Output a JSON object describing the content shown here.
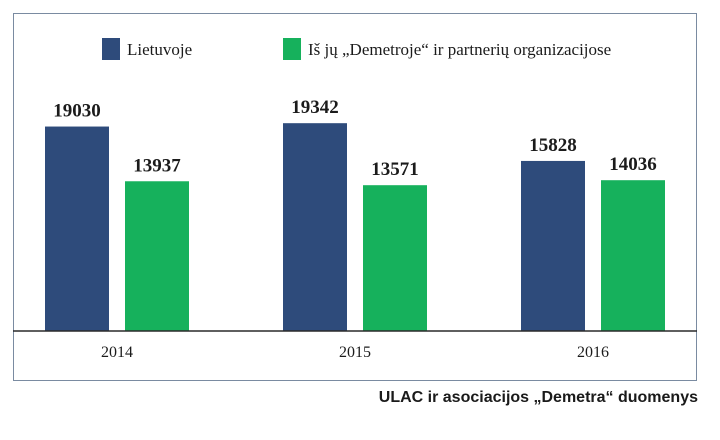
{
  "colors": {
    "series1": "#2e4b7b",
    "series2": "#16b15c",
    "axis": "#2a2a2a",
    "frame": "#7a8ba1"
  },
  "source_note": "ULAC ir asociacijos „Demetra“ duomenys",
  "chart_data": {
    "type": "bar",
    "categories": [
      "2014",
      "2015",
      "2016"
    ],
    "series": [
      {
        "name": "Lietuvoje",
        "values": [
          19030,
          19342,
          15828
        ]
      },
      {
        "name": "Iš jų „Demetroje“ ir partnerių organizacijose",
        "values": [
          13937,
          13571,
          14036
        ]
      }
    ],
    "data_labels": [
      [
        "19030",
        "19342",
        "15828"
      ],
      [
        "13937",
        "13571",
        "14036"
      ]
    ],
    "ylim": [
      0,
      21500
    ],
    "grid": false,
    "legend_position": "top"
  }
}
